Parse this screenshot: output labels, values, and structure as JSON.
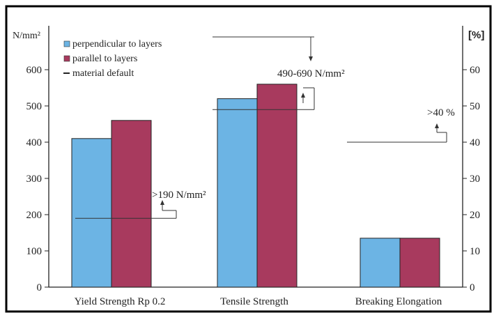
{
  "chart_data": {
    "type": "bar",
    "categories": [
      "Yield Strength Rp 0.2",
      "Tensile Strength",
      "Breaking Elongation"
    ],
    "series": [
      {
        "name": "perpendicular to layers",
        "color": "#6cb4e4",
        "values": [
          410,
          520,
          13.5
        ],
        "axis": [
          "left",
          "left",
          "right"
        ]
      },
      {
        "name": "parallel to layers",
        "color": "#a83a5e",
        "values": [
          460,
          560,
          13.5
        ],
        "axis": [
          "left",
          "left",
          "right"
        ]
      }
    ],
    "material_default": {
      "label": "material default",
      "values": [
        190,
        490,
        40
      ],
      "annotations": [
        ">190 N/mm²",
        "490-690 N/mm²",
        ">40 %"
      ],
      "color": "#333333"
    },
    "y_left": {
      "label": "N/mm²",
      "range": [
        0,
        700
      ],
      "ticks": [
        "0",
        "100",
        "200",
        "300",
        "400",
        "500",
        "600"
      ]
    },
    "y_right": {
      "label": "[%]",
      "range": [
        0,
        70
      ],
      "ticks": [
        "0",
        "10",
        "20",
        "30",
        "40",
        "50",
        "60"
      ]
    },
    "grid": false,
    "legend_position": "top-left",
    "legend": {
      "items": [
        "perpendicular to layers",
        "parallel to layers",
        "material default"
      ]
    }
  }
}
